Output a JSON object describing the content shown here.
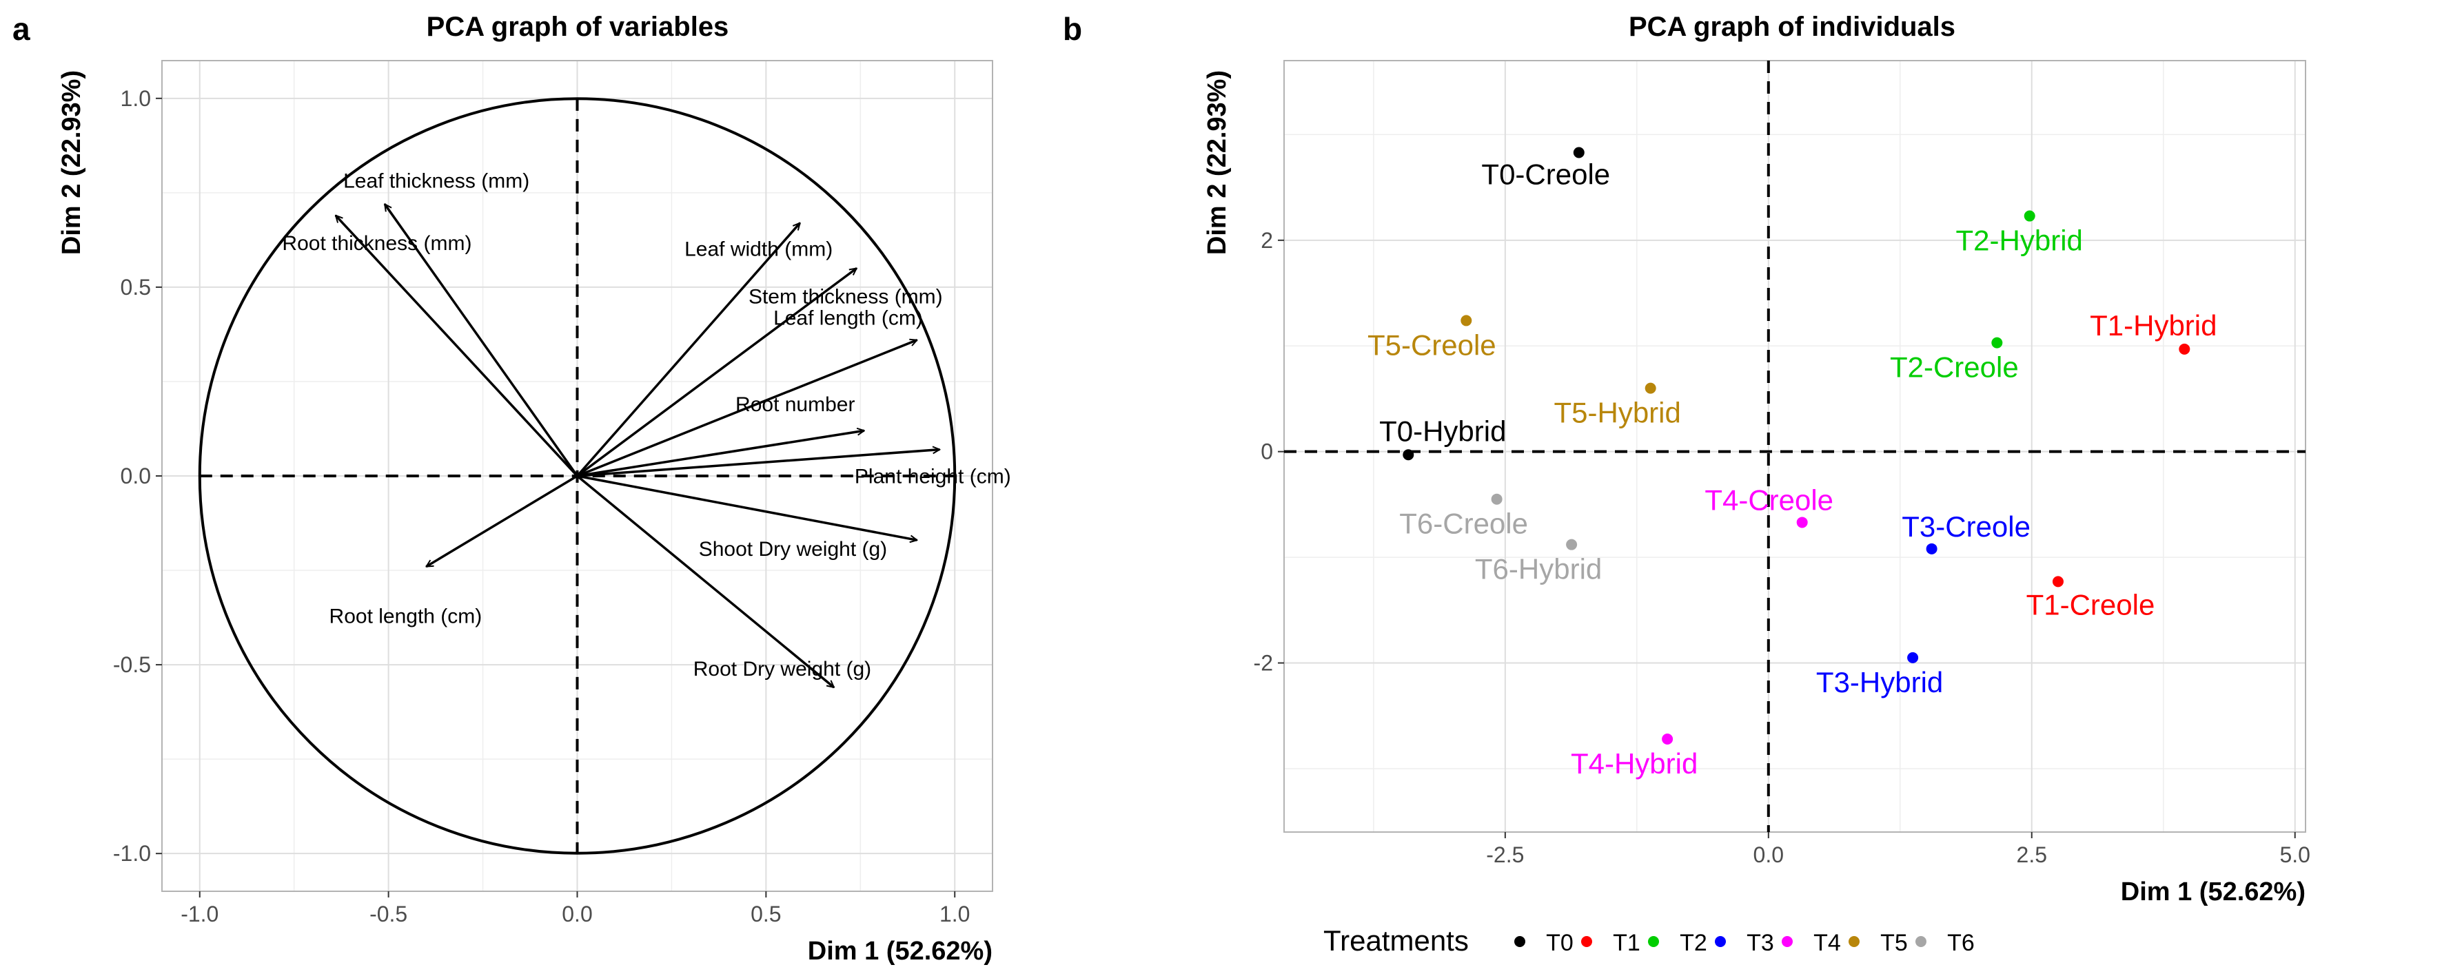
{
  "panels": {
    "a": {
      "letter": "a"
    },
    "b": {
      "letter": "b"
    }
  },
  "legend": {
    "title": "Treatments",
    "items": [
      {
        "name": "T0",
        "color": "#000000"
      },
      {
        "name": "T1",
        "color": "#ff0000"
      },
      {
        "name": "T2",
        "color": "#00cd00"
      },
      {
        "name": "T3",
        "color": "#0000ff"
      },
      {
        "name": "T4",
        "color": "#ff00ff"
      },
      {
        "name": "T5",
        "color": "#b8860b"
      },
      {
        "name": "T6",
        "color": "#a6a6a6"
      }
    ]
  },
  "chart_data": [
    {
      "type": "scatter",
      "subtype": "pca-variable-correlation-circle",
      "title": "PCA graph of variables",
      "xlabel": "Dim 1 (52.62%)",
      "ylabel": "Dim 2 (22.93%)",
      "xlim": [
        -1.1,
        1.1
      ],
      "ylim": [
        -1.1,
        1.1
      ],
      "xticks": [
        -1.0,
        -0.5,
        0.0,
        0.5,
        1.0
      ],
      "xtick_labels": [
        "-1.0",
        "-0.5",
        "0.0",
        "0.5",
        "1.0"
      ],
      "yticks": [
        -1.0,
        -0.5,
        0.0,
        0.5,
        1.0
      ],
      "ytick_labels": [
        "-1.0",
        "-0.5",
        "0.0",
        "0.5",
        "1.0"
      ],
      "grid": true,
      "unit_circle": true,
      "variables": [
        {
          "name": "Leaf thickness (mm)",
          "x": -0.51,
          "y": 0.72
        },
        {
          "name": "Root thickness (mm)",
          "x": -0.64,
          "y": 0.69
        },
        {
          "name": "Leaf width (mm)",
          "x": 0.59,
          "y": 0.67
        },
        {
          "name": "Stem thickness (mm)",
          "x": 0.74,
          "y": 0.55
        },
        {
          "name": "Leaf length (cm)",
          "x": 0.9,
          "y": 0.36
        },
        {
          "name": "Root number",
          "x": 0.76,
          "y": 0.12
        },
        {
          "name": "Plant height (cm)",
          "x": 0.96,
          "y": 0.07
        },
        {
          "name": "Shoot Dry weight (g)",
          "x": 0.9,
          "y": -0.17
        },
        {
          "name": "Root length (cm)",
          "x": -0.4,
          "y": -0.24
        },
        {
          "name": "Root Dry weight (g)",
          "x": 0.68,
          "y": -0.56
        }
      ]
    },
    {
      "type": "scatter",
      "subtype": "pca-individuals",
      "title": "PCA graph of individuals",
      "xlabel": "Dim 1 (52.62%)",
      "ylabel": "Dim 2 (22.93%)",
      "xlim": [
        -4.6,
        5.1
      ],
      "ylim": [
        -3.6,
        3.7
      ],
      "xticks": [
        -2.5,
        0.0,
        2.5,
        5.0
      ],
      "xtick_labels": [
        "-2.5",
        "0.0",
        "2.5",
        "5.0"
      ],
      "yticks": [
        -2,
        0,
        2
      ],
      "ytick_labels": [
        "-2",
        "0",
        "2"
      ],
      "grid": true,
      "legend_position": "bottom",
      "points": [
        {
          "name": "T0-Creole",
          "group": "T0",
          "x": -1.8,
          "y": 2.83
        },
        {
          "name": "T0-Hybrid",
          "group": "T0",
          "x": -3.42,
          "y": -0.03
        },
        {
          "name": "T1-Hybrid",
          "group": "T1",
          "x": 3.95,
          "y": 0.97
        },
        {
          "name": "T1-Creole",
          "group": "T1",
          "x": 2.75,
          "y": -1.23
        },
        {
          "name": "T2-Hybrid",
          "group": "T2",
          "x": 2.48,
          "y": 2.23
        },
        {
          "name": "T2-Creole",
          "group": "T2",
          "x": 2.17,
          "y": 1.03
        },
        {
          "name": "T3-Creole",
          "group": "T3",
          "x": 1.55,
          "y": -0.92
        },
        {
          "name": "T3-Hybrid",
          "group": "T3",
          "x": 1.37,
          "y": -1.95
        },
        {
          "name": "T4-Creole",
          "group": "T4",
          "x": 0.32,
          "y": -0.67
        },
        {
          "name": "T4-Hybrid",
          "group": "T4",
          "x": -0.96,
          "y": -2.72
        },
        {
          "name": "T5-Creole",
          "group": "T5",
          "x": -2.87,
          "y": 1.24
        },
        {
          "name": "T5-Hybrid",
          "group": "T5",
          "x": -1.12,
          "y": 0.6
        },
        {
          "name": "T6-Creole",
          "group": "T6",
          "x": -2.58,
          "y": -0.45
        },
        {
          "name": "T6-Hybrid",
          "group": "T6",
          "x": -1.87,
          "y": -0.88
        }
      ]
    }
  ]
}
